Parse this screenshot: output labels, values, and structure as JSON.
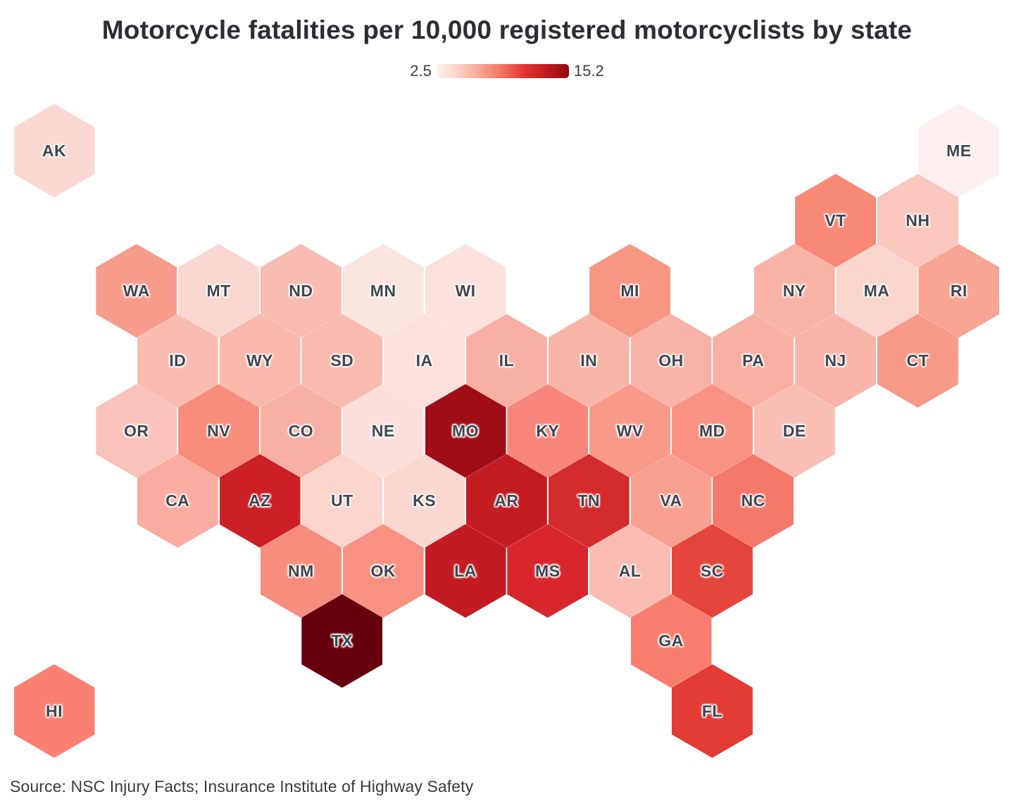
{
  "title": "Motorcycle fatalities per 10,000 registered motorcyclists by state",
  "source": "Source: NSC Injury Facts; Insurance Institute of Highway Safety",
  "legend": {
    "min_label": "2.5",
    "max_label": "15.2",
    "gradient": [
      "#fdf0ec",
      "#fcd0c7",
      "#f9a392",
      "#f4705f",
      "#e23530",
      "#c01b20",
      "#8e0b10"
    ]
  },
  "chart_data": {
    "type": "heatmap",
    "subtype": "hexagonal-tile-cartogram",
    "title": "Motorcycle fatalities per 10,000 registered motorcyclists by state",
    "value_label": "Motorcycle fatalities per 10,000 registered motorcyclists",
    "scale": {
      "min": 2.5,
      "max": 15.2,
      "palette": "Reds (light pink to dark red)"
    },
    "legend_position": "top-center",
    "note": "values are estimated from tile color against the 2.5–15.2 color ramp; row/col give hex-grid placement (col in half-column units)",
    "states": [
      {
        "abbr": "AK",
        "row": 0,
        "col": 0,
        "color": "#fbd9d2",
        "value_estimate": 3.4
      },
      {
        "abbr": "ME",
        "row": 0,
        "col": 22,
        "color": "#fdf0ee",
        "value_estimate": 2.6
      },
      {
        "abbr": "VT",
        "row": 1,
        "col": 19,
        "color": "#f88977",
        "value_estimate": 6.5
      },
      {
        "abbr": "NH",
        "row": 1,
        "col": 21,
        "color": "#fac7bd",
        "value_estimate": 4.1
      },
      {
        "abbr": "WA",
        "row": 2,
        "col": 2,
        "color": "#f89c8c",
        "value_estimate": 5.6
      },
      {
        "abbr": "MT",
        "row": 2,
        "col": 4,
        "color": "#fbd7d1",
        "value_estimate": 3.5
      },
      {
        "abbr": "ND",
        "row": 2,
        "col": 6,
        "color": "#f9bcb1",
        "value_estimate": 4.5
      },
      {
        "abbr": "MN",
        "row": 2,
        "col": 8,
        "color": "#fce4e0",
        "value_estimate": 3.0
      },
      {
        "abbr": "WI",
        "row": 2,
        "col": 10,
        "color": "#fce2dd",
        "value_estimate": 3.1
      },
      {
        "abbr": "MI",
        "row": 2,
        "col": 14,
        "color": "#f89684",
        "value_estimate": 5.9
      },
      {
        "abbr": "NY",
        "row": 2,
        "col": 18,
        "color": "#f9b3a7",
        "value_estimate": 4.8
      },
      {
        "abbr": "MA",
        "row": 2,
        "col": 20,
        "color": "#fbd6cf",
        "value_estimate": 3.5
      },
      {
        "abbr": "RI",
        "row": 2,
        "col": 22,
        "color": "#f8a593",
        "value_estimate": 5.3
      },
      {
        "abbr": "ID",
        "row": 3,
        "col": 3,
        "color": "#fabcb1",
        "value_estimate": 4.5
      },
      {
        "abbr": "WY",
        "row": 3,
        "col": 5,
        "color": "#f9b9ad",
        "value_estimate": 4.6
      },
      {
        "abbr": "SD",
        "row": 3,
        "col": 7,
        "color": "#f9baaf",
        "value_estimate": 4.6
      },
      {
        "abbr": "IA",
        "row": 3,
        "col": 9,
        "color": "#fce0db",
        "value_estimate": 3.2
      },
      {
        "abbr": "IL",
        "row": 3,
        "col": 11,
        "color": "#f8b0a4",
        "value_estimate": 4.9
      },
      {
        "abbr": "IN",
        "row": 3,
        "col": 13,
        "color": "#f9b4a8",
        "value_estimate": 4.8
      },
      {
        "abbr": "OH",
        "row": 3,
        "col": 15,
        "color": "#f9b2a6",
        "value_estimate": 4.8
      },
      {
        "abbr": "PA",
        "row": 3,
        "col": 17,
        "color": "#f9afa1",
        "value_estimate": 4.9
      },
      {
        "abbr": "NJ",
        "row": 3,
        "col": 19,
        "color": "#f9b5a9",
        "value_estimate": 4.7
      },
      {
        "abbr": "CT",
        "row": 3,
        "col": 21,
        "color": "#f79a88",
        "value_estimate": 5.7
      },
      {
        "abbr": "OR",
        "row": 4,
        "col": 2,
        "color": "#fac3b9",
        "value_estimate": 4.2
      },
      {
        "abbr": "NV",
        "row": 4,
        "col": 4,
        "color": "#f88d7b",
        "value_estimate": 6.3
      },
      {
        "abbr": "CO",
        "row": 4,
        "col": 6,
        "color": "#f9b0a4",
        "value_estimate": 4.9
      },
      {
        "abbr": "NE",
        "row": 4,
        "col": 8,
        "color": "#fcdfda",
        "value_estimate": 3.2
      },
      {
        "abbr": "MO",
        "row": 4,
        "col": 10,
        "color": "#a00e15",
        "value_estimate": 13.2
      },
      {
        "abbr": "KY",
        "row": 4,
        "col": 12,
        "color": "#f8867b",
        "value_estimate": 6.5
      },
      {
        "abbr": "WV",
        "row": 4,
        "col": 14,
        "color": "#f99a8a",
        "value_estimate": 5.7
      },
      {
        "abbr": "MD",
        "row": 4,
        "col": 16,
        "color": "#f89282",
        "value_estimate": 6.1
      },
      {
        "abbr": "DE",
        "row": 4,
        "col": 18,
        "color": "#fabfb4",
        "value_estimate": 4.4
      },
      {
        "abbr": "CA",
        "row": 5,
        "col": 3,
        "color": "#f9ac9f",
        "value_estimate": 5.0
      },
      {
        "abbr": "AZ",
        "row": 5,
        "col": 5,
        "color": "#cc1f26",
        "value_estimate": 10.8
      },
      {
        "abbr": "UT",
        "row": 5,
        "col": 7,
        "color": "#fbd5ce",
        "value_estimate": 3.5
      },
      {
        "abbr": "KS",
        "row": 5,
        "col": 9,
        "color": "#fbd7d1",
        "value_estimate": 3.5
      },
      {
        "abbr": "AR",
        "row": 5,
        "col": 11,
        "color": "#c41c23",
        "value_estimate": 11.2
      },
      {
        "abbr": "TN",
        "row": 5,
        "col": 13,
        "color": "#d42b2d",
        "value_estimate": 10.1
      },
      {
        "abbr": "VA",
        "row": 5,
        "col": 15,
        "color": "#f9a091",
        "value_estimate": 5.5
      },
      {
        "abbr": "NC",
        "row": 5,
        "col": 17,
        "color": "#f4796b",
        "value_estimate": 7.2
      },
      {
        "abbr": "NM",
        "row": 6,
        "col": 6,
        "color": "#f78d7c",
        "value_estimate": 6.3
      },
      {
        "abbr": "OK",
        "row": 6,
        "col": 8,
        "color": "#f89181",
        "value_estimate": 6.1
      },
      {
        "abbr": "LA",
        "row": 6,
        "col": 10,
        "color": "#c21b21",
        "value_estimate": 11.3
      },
      {
        "abbr": "MS",
        "row": 6,
        "col": 12,
        "color": "#d8262c",
        "value_estimate": 10.0
      },
      {
        "abbr": "AL",
        "row": 6,
        "col": 14,
        "color": "#fbbcb3",
        "value_estimate": 4.5
      },
      {
        "abbr": "SC",
        "row": 6,
        "col": 16,
        "color": "#e4453c",
        "value_estimate": 9.1
      },
      {
        "abbr": "TX",
        "row": 7,
        "col": 7,
        "color": "#67000d",
        "value_estimate": 15.2
      },
      {
        "abbr": "GA",
        "row": 7,
        "col": 15,
        "color": "#f97e6f",
        "value_estimate": 6.9
      },
      {
        "abbr": "HI",
        "row": 8,
        "col": 0,
        "color": "#fa8072",
        "value_estimate": 6.8
      },
      {
        "abbr": "FL",
        "row": 8,
        "col": 16,
        "color": "#e23c35",
        "value_estimate": 9.4
      }
    ]
  }
}
